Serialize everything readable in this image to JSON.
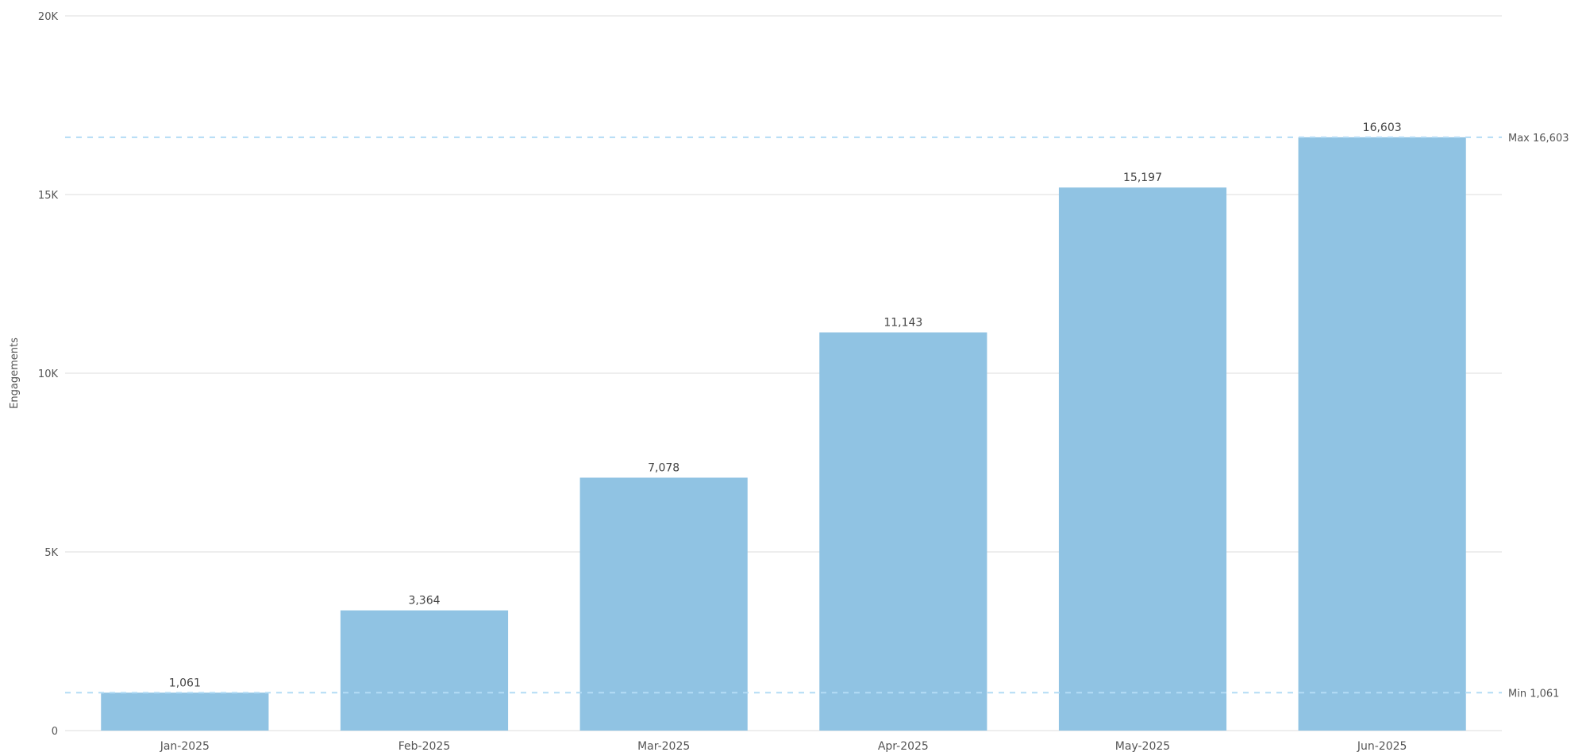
{
  "chart_data": {
    "type": "bar",
    "title": "",
    "xlabel": "",
    "ylabel": "Engagements",
    "categories": [
      "Jan-2025",
      "Feb-2025",
      "Mar-2025",
      "Apr-2025",
      "May-2025",
      "Jun-2025"
    ],
    "values": [
      1061,
      3364,
      7078,
      11143,
      15197,
      16603
    ],
    "value_labels": [
      "1,061",
      "3,364",
      "7,078",
      "11,143",
      "15,197",
      "16,603"
    ],
    "ylim": [
      0,
      20000
    ],
    "yticks": [
      0,
      5000,
      10000,
      15000,
      20000
    ],
    "ytick_labels": [
      "0",
      "5K",
      "10K",
      "15K",
      "20K"
    ],
    "grid": true,
    "legend": "none",
    "reference_lines": [
      {
        "label": "Max 16,603",
        "value": 16603
      },
      {
        "label": "Min 1,061",
        "value": 1061
      }
    ],
    "colors": {
      "bar": "#90c3e3",
      "gridline": "#dcdcdc",
      "reference_line": "#b3dcf5",
      "text": "#555555"
    }
  }
}
